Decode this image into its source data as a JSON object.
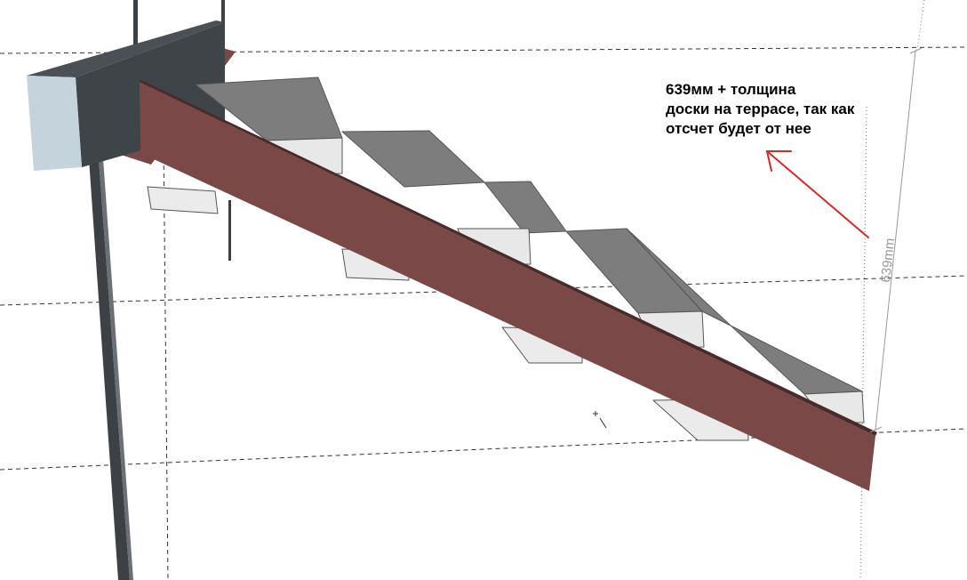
{
  "annotation": {
    "lines": [
      "639мм + толщина",
      "доски на террасе, так как",
      "отсчет будет от нее"
    ]
  },
  "dimension": {
    "label": "639mm"
  },
  "colors": {
    "stringer": "#7b4848",
    "stringer_top_edge": "#4a2a2a",
    "tread_top": "#7d7d7d",
    "tread_front": "#e8e8e8",
    "beam_dark": "#3f4448",
    "beam_front": "#c4d3dc",
    "post": "#3d4145",
    "arrow": "#d42a2a",
    "guide_lines": "#333333"
  }
}
